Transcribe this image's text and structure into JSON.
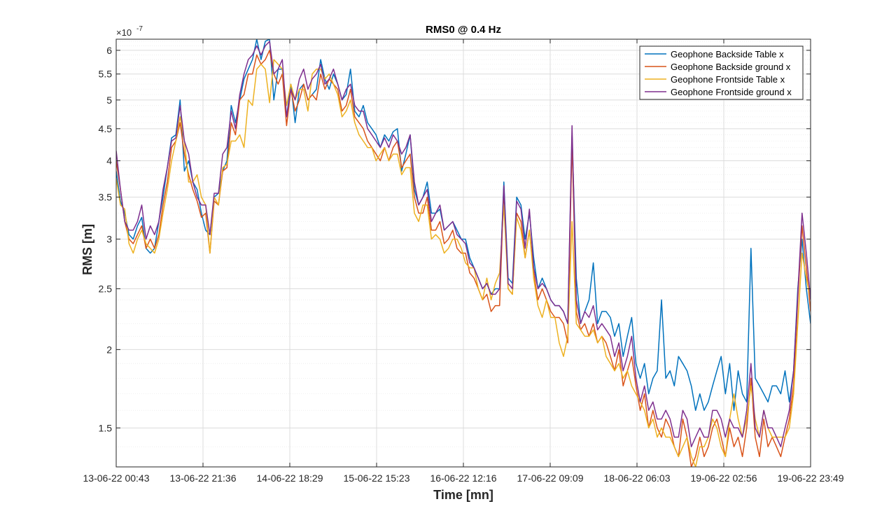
{
  "chart_data": {
    "type": "line",
    "title": "RMS0 @ 0.4 Hz",
    "xlabel": "Time [mn]",
    "ylabel": "RMS [m]",
    "y_scale": "log",
    "y_exponent_label": "×10",
    "y_exponent_power": "-7",
    "ylim": [
      1.3,
      6.25
    ],
    "y_ticks": [
      1.5,
      2,
      2.5,
      3,
      3.5,
      4,
      4.5,
      5,
      5.5,
      6
    ],
    "y_tick_labels": [
      "1.5",
      "2",
      "2.5",
      "3",
      "3.5",
      "4",
      "4.5",
      "5",
      "5.5",
      "6"
    ],
    "x_tick_labels": [
      "13-06-22 00:43",
      "13-06-22 21:36",
      "14-06-22 18:29",
      "15-06-22 15:23",
      "16-06-22 12:16",
      "17-06-22 09:09",
      "18-06-22 06:03",
      "19-06-22 02:56",
      "19-06-22 23:49"
    ],
    "grid": true,
    "minor_grid": true,
    "legend_position": "top-right",
    "series": [
      {
        "name": "Geophone Backside Table x",
        "color": "#0072BD",
        "values": [
          3.85,
          3.45,
          3.3,
          3.05,
          3.0,
          3.15,
          3.25,
          2.9,
          2.85,
          2.9,
          3.2,
          3.5,
          3.9,
          4.35,
          4.4,
          5.0,
          3.85,
          4.0,
          3.7,
          3.6,
          3.3,
          3.1,
          3.05,
          3.5,
          3.55,
          3.85,
          4.0,
          4.9,
          4.6,
          5.0,
          5.4,
          5.6,
          5.8,
          6.25,
          5.8,
          6.2,
          6.25,
          5.0,
          5.6,
          5.6,
          4.7,
          5.3,
          4.6,
          5.2,
          5.3,
          5.0,
          5.1,
          5.2,
          5.8,
          5.4,
          5.2,
          5.5,
          5.3,
          5.0,
          5.1,
          5.6,
          4.8,
          4.7,
          4.9,
          4.6,
          4.5,
          4.4,
          4.2,
          4.4,
          4.3,
          4.45,
          4.5,
          3.85,
          4.1,
          4.4,
          3.6,
          3.4,
          3.5,
          3.7,
          3.3,
          3.3,
          3.35,
          3.1,
          3.15,
          3.2,
          3.1,
          3.0,
          3.0,
          2.8,
          2.7,
          2.6,
          2.5,
          2.55,
          2.45,
          2.5,
          2.5,
          3.7,
          2.6,
          2.55,
          3.5,
          3.4,
          3.0,
          3.3,
          2.8,
          2.5,
          2.6,
          2.5,
          2.4,
          2.35,
          2.35,
          2.3,
          2.2,
          4.4,
          2.6,
          2.2,
          2.3,
          2.4,
          2.75,
          2.2,
          2.3,
          2.3,
          2.25,
          2.1,
          2.2,
          1.95,
          2.1,
          2.25,
          1.9,
          1.8,
          1.9,
          1.7,
          1.8,
          1.85,
          2.4,
          1.8,
          1.85,
          1.75,
          1.95,
          1.9,
          1.85,
          1.75,
          1.6,
          1.7,
          1.6,
          1.65,
          1.75,
          1.85,
          1.95,
          1.7,
          1.9,
          1.6,
          1.85,
          1.7,
          1.65,
          2.9,
          1.8,
          1.75,
          1.7,
          1.65,
          1.75,
          1.75,
          1.7,
          1.85,
          1.65,
          1.85,
          2.5,
          3.0,
          2.5,
          2.2
        ]
      },
      {
        "name": "Geophone Backside ground x",
        "color": "#D95319",
        "values": [
          4.0,
          3.6,
          3.2,
          3.0,
          2.95,
          3.05,
          3.15,
          2.9,
          3.0,
          2.9,
          3.05,
          3.4,
          3.7,
          4.2,
          4.3,
          4.6,
          4.1,
          3.8,
          3.6,
          3.45,
          3.25,
          3.3,
          2.85,
          3.45,
          3.4,
          3.85,
          3.9,
          4.6,
          4.4,
          5.0,
          5.1,
          5.5,
          5.5,
          5.9,
          5.7,
          5.8,
          6.0,
          5.5,
          5.3,
          5.5,
          4.55,
          5.2,
          4.8,
          5.0,
          5.3,
          5.0,
          5.1,
          5.0,
          5.5,
          5.2,
          5.4,
          5.3,
          5.2,
          4.8,
          4.9,
          5.2,
          4.7,
          4.6,
          4.5,
          4.3,
          4.2,
          4.1,
          4.0,
          4.2,
          4.0,
          4.2,
          4.3,
          3.9,
          4.0,
          4.1,
          3.5,
          3.3,
          3.3,
          3.5,
          3.1,
          3.1,
          3.2,
          2.95,
          3.0,
          3.1,
          2.9,
          2.85,
          2.85,
          2.65,
          2.6,
          2.5,
          2.4,
          2.45,
          2.3,
          2.35,
          2.35,
          3.6,
          2.5,
          2.45,
          3.3,
          3.2,
          2.8,
          3.1,
          2.65,
          2.4,
          2.5,
          2.4,
          2.3,
          2.25,
          2.25,
          2.2,
          2.05,
          4.3,
          2.3,
          2.15,
          2.2,
          2.1,
          2.2,
          2.05,
          2.1,
          2.05,
          1.95,
          1.85,
          2.0,
          1.75,
          1.85,
          1.95,
          1.75,
          1.6,
          1.7,
          1.5,
          1.6,
          1.5,
          1.45,
          1.55,
          1.5,
          1.4,
          1.35,
          1.55,
          1.45,
          1.3,
          1.35,
          1.45,
          1.35,
          1.4,
          1.5,
          1.55,
          1.45,
          1.35,
          1.5,
          1.4,
          1.45,
          1.35,
          1.5,
          1.8,
          1.45,
          1.35,
          1.55,
          1.4,
          1.45,
          1.4,
          1.35,
          1.45,
          1.55,
          1.75,
          2.4,
          3.15,
          2.7,
          2.3
        ]
      },
      {
        "name": "Geophone Frontside Table x",
        "color": "#EDB120",
        "values": [
          3.75,
          3.4,
          3.35,
          2.95,
          2.85,
          3.0,
          3.1,
          2.95,
          2.9,
          2.85,
          3.0,
          3.3,
          3.6,
          4.0,
          4.3,
          4.7,
          4.3,
          3.7,
          3.7,
          3.8,
          3.5,
          3.4,
          2.85,
          3.5,
          3.4,
          3.9,
          3.95,
          4.3,
          4.3,
          4.4,
          4.2,
          5.0,
          4.9,
          5.6,
          5.7,
          5.6,
          4.95,
          5.8,
          5.7,
          5.6,
          4.9,
          5.3,
          5.0,
          5.2,
          5.2,
          4.8,
          5.5,
          5.6,
          5.6,
          5.4,
          5.5,
          5.3,
          5.1,
          4.7,
          4.8,
          5.0,
          4.6,
          4.4,
          4.3,
          4.2,
          4.2,
          4.0,
          4.1,
          4.2,
          4.0,
          4.1,
          4.1,
          3.8,
          3.9,
          3.9,
          3.3,
          3.2,
          3.4,
          3.4,
          3.0,
          3.05,
          3.0,
          2.85,
          2.9,
          3.0,
          3.0,
          2.9,
          2.75,
          2.7,
          2.7,
          2.5,
          2.4,
          2.6,
          2.4,
          2.55,
          2.65,
          3.4,
          2.5,
          2.45,
          3.25,
          3.1,
          2.8,
          3.1,
          2.6,
          2.35,
          2.25,
          2.4,
          2.25,
          2.25,
          2.05,
          1.95,
          2.1,
          3.2,
          2.2,
          2.15,
          2.1,
          2.1,
          2.15,
          2.05,
          2.1,
          1.95,
          1.9,
          1.85,
          1.9,
          1.8,
          1.85,
          1.75,
          1.7,
          1.65,
          1.6,
          1.5,
          1.55,
          1.45,
          1.5,
          1.45,
          1.45,
          1.4,
          1.35,
          1.4,
          1.45,
          1.35,
          1.3,
          1.4,
          1.4,
          1.45,
          1.55,
          1.5,
          1.4,
          1.35,
          1.55,
          1.7,
          1.55,
          1.45,
          1.55,
          1.75,
          1.55,
          1.45,
          1.6,
          1.5,
          1.45,
          1.45,
          1.45,
          1.45,
          1.5,
          1.7,
          2.2,
          2.85,
          2.6,
          2.4
        ]
      },
      {
        "name": "Geophone Frontside ground x",
        "color": "#7E2F8E",
        "values": [
          4.15,
          3.6,
          3.2,
          3.1,
          3.1,
          3.2,
          3.4,
          3.0,
          3.15,
          3.05,
          3.2,
          3.6,
          3.9,
          4.3,
          4.35,
          4.9,
          4.3,
          4.1,
          3.7,
          3.5,
          3.4,
          3.4,
          3.05,
          3.55,
          3.55,
          4.1,
          4.2,
          4.8,
          4.5,
          5.1,
          5.5,
          5.8,
          5.9,
          6.1,
          5.9,
          6.1,
          6.2,
          5.5,
          5.6,
          5.8,
          4.7,
          5.2,
          5.0,
          5.4,
          5.6,
          5.2,
          5.4,
          5.5,
          5.7,
          5.3,
          5.4,
          5.6,
          5.3,
          5.0,
          5.2,
          5.3,
          4.9,
          4.8,
          4.8,
          4.5,
          4.4,
          4.3,
          4.2,
          4.35,
          4.2,
          4.4,
          4.3,
          4.1,
          4.2,
          4.4,
          3.7,
          3.4,
          3.5,
          3.6,
          3.2,
          3.3,
          3.4,
          3.1,
          3.15,
          3.2,
          3.05,
          3.0,
          2.95,
          2.75,
          2.7,
          2.6,
          2.5,
          2.55,
          2.45,
          2.45,
          2.5,
          3.65,
          2.55,
          2.5,
          3.45,
          3.35,
          2.9,
          3.35,
          2.7,
          2.5,
          2.55,
          2.5,
          2.4,
          2.35,
          2.35,
          2.3,
          2.2,
          4.55,
          2.4,
          2.2,
          2.3,
          2.25,
          2.35,
          2.15,
          2.2,
          2.15,
          2.1,
          1.95,
          2.05,
          1.85,
          1.95,
          2.1,
          1.8,
          1.65,
          1.75,
          1.6,
          1.65,
          1.55,
          1.55,
          1.6,
          1.55,
          1.45,
          1.45,
          1.6,
          1.55,
          1.4,
          1.45,
          1.5,
          1.45,
          1.45,
          1.6,
          1.6,
          1.55,
          1.45,
          1.55,
          1.5,
          1.5,
          1.45,
          1.6,
          1.9,
          1.5,
          1.45,
          1.6,
          1.5,
          1.5,
          1.45,
          1.4,
          1.5,
          1.6,
          1.85,
          2.45,
          3.3,
          2.85,
          2.4
        ]
      }
    ]
  }
}
